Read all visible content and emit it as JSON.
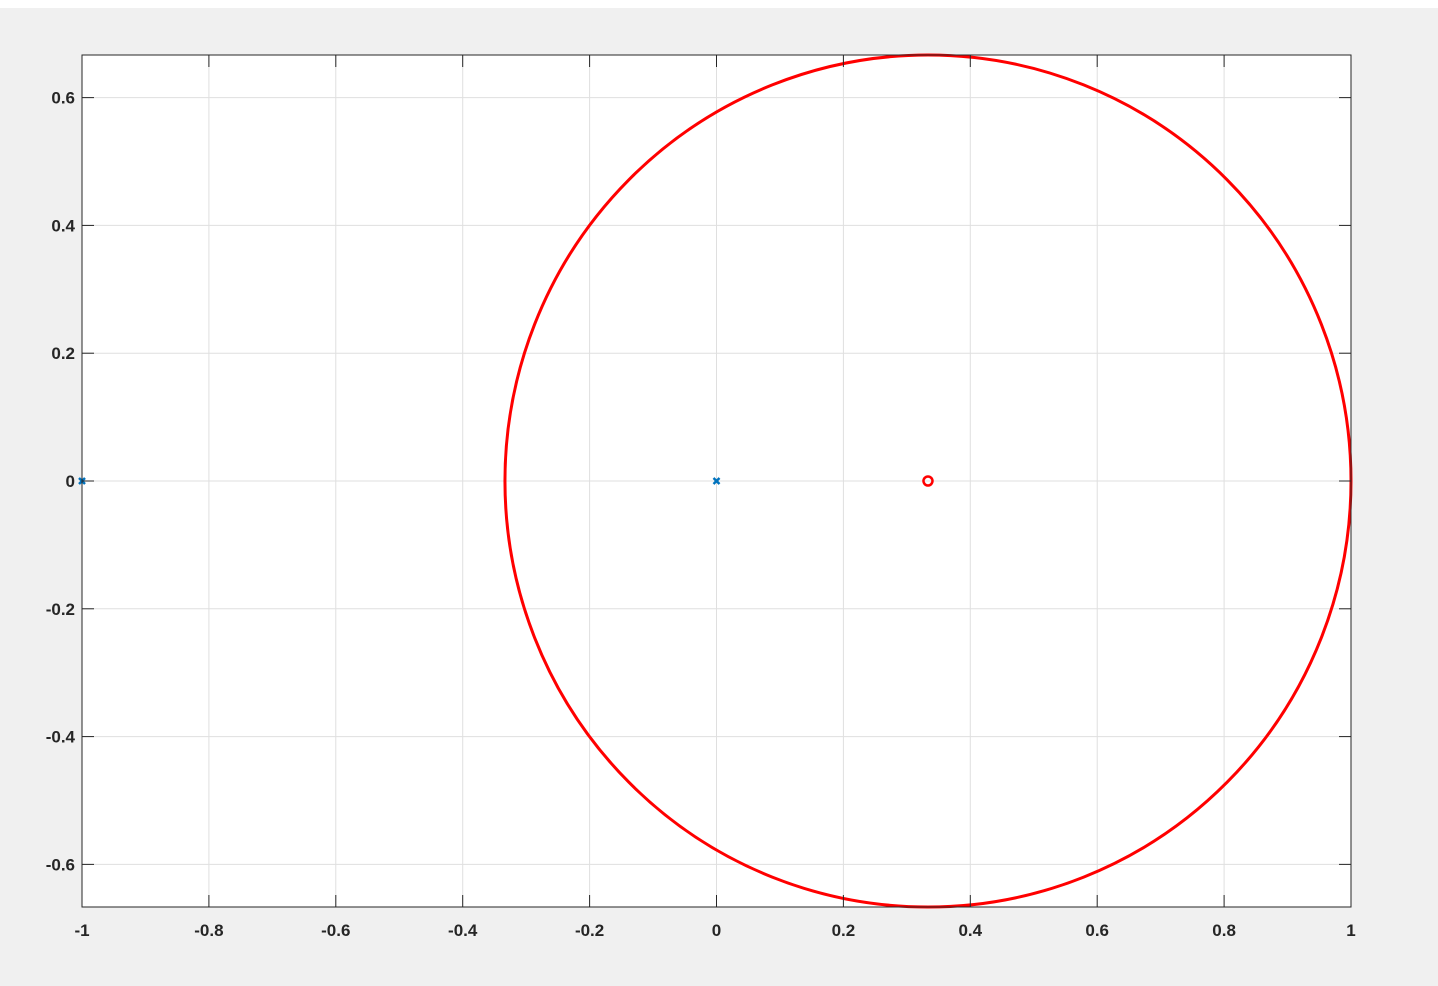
{
  "chart_data": {
    "type": "scatter",
    "title": "",
    "xlabel": "",
    "ylabel": "",
    "xlim": [
      -1,
      1
    ],
    "ylim": [
      -0.6667,
      0.6667
    ],
    "grid": true,
    "axis_equal": true,
    "x_ticks": [
      "-1",
      "-0.8",
      "-0.6",
      "-0.4",
      "-0.2",
      "0",
      "0.2",
      "0.4",
      "0.6",
      "0.8",
      "1"
    ],
    "y_ticks": [
      "0.6",
      "0.4",
      "0.2",
      "0",
      "-0.2",
      "-0.4",
      "-0.6"
    ],
    "x_tick_values": [
      -1,
      -0.8,
      -0.6,
      -0.4,
      -0.2,
      0,
      0.2,
      0.4,
      0.6,
      0.8,
      1
    ],
    "y_tick_values": [
      0.6,
      0.4,
      0.2,
      0,
      -0.2,
      -0.4,
      -0.6
    ],
    "series": [
      {
        "marker": "x",
        "color": "#0072bd",
        "points": [
          [
            -1,
            0
          ],
          [
            0,
            0
          ]
        ]
      },
      {
        "marker": "o",
        "color": "#ff0000",
        "points": [
          [
            0.3333,
            0
          ]
        ]
      },
      {
        "kind": "circle",
        "color": "#ff0000",
        "center": [
          0.3333,
          0
        ],
        "radius": 0.6667
      }
    ]
  }
}
